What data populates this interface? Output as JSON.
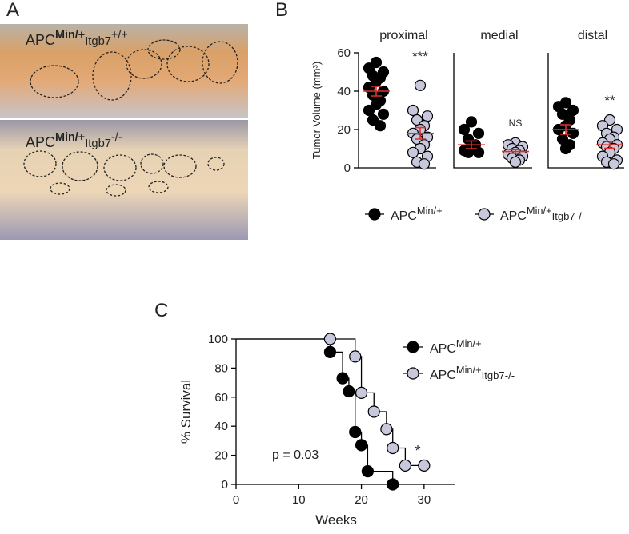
{
  "panels": [
    "A",
    "B",
    "C"
  ],
  "photo": {
    "labels": [
      {
        "base": "APC",
        "sup": "Min/+",
        "gene": "Itgb7",
        "gene_sup": "+/+"
      },
      {
        "base": "APC",
        "sup": "Min/+",
        "gene": "Itgb7",
        "gene_sup": "-/-"
      }
    ]
  },
  "chart_data": [
    {
      "type": "strip",
      "ylabel": "Tumor Volume (mm³)",
      "groups": [
        "proximal",
        "medial",
        "distal"
      ],
      "annotations": [
        "***",
        "NS",
        "**"
      ],
      "ylim": [
        0,
        60
      ],
      "yticks": [
        0,
        20,
        40,
        60
      ],
      "mean_color": "#e0302a",
      "series": [
        {
          "name": {
            "base": "APC",
            "sup": "Min/+"
          },
          "color": "#000000",
          "values": [
            [
              55,
              52,
              50,
              48,
              47,
              45,
              42,
              40,
              38,
              35,
              33,
              30,
              28,
              25,
              22
            ],
            [
              24,
              20,
              18,
              15,
              12,
              10,
              9,
              8,
              8
            ],
            [
              34,
              32,
              30,
              28,
              25,
              22,
              20,
              18,
              15,
              12,
              10
            ]
          ],
          "mean": [
            40,
            12,
            20
          ],
          "sem": [
            2.5,
            2,
            2.5
          ]
        },
        {
          "name": {
            "base": "APC",
            "sup": "Min/+",
            "sub": "Itgb7-/-"
          },
          "color": "#c8c8dc",
          "values": [
            [
              43,
              30,
              27,
              25,
              22,
              20,
              18,
              16,
              15,
              12,
              10,
              8,
              6,
              3,
              2
            ],
            [
              13,
              12,
              11,
              10,
              9,
              8,
              7,
              6,
              5,
              4,
              3
            ],
            [
              25,
              22,
              20,
              18,
              16,
              15,
              13,
              12,
              11,
              10,
              8,
              6,
              4,
              3,
              2
            ]
          ],
          "mean": [
            18,
            8.5,
            12
          ],
          "sem": [
            3,
            1,
            1.8
          ]
        }
      ]
    },
    {
      "type": "step",
      "xlabel": "Weeks",
      "ylabel": "% Survival",
      "annotations": [
        "p = 0.03",
        "*"
      ],
      "xlim": [
        0,
        35
      ],
      "xticks": [
        0,
        10,
        20,
        30
      ],
      "ylim": [
        0,
        100
      ],
      "yticks": [
        0,
        20,
        40,
        60,
        80,
        100
      ],
      "series": [
        {
          "name": {
            "base": "APC",
            "sup": "Min/+"
          },
          "color": "#000000",
          "x": [
            0,
            15,
            17,
            18,
            19,
            20,
            21,
            25
          ],
          "values": [
            100,
            91,
            73,
            64,
            36,
            27,
            9,
            0
          ]
        },
        {
          "name": {
            "base": "APC",
            "sup": "Min/+",
            "sub": "Itgb7-/-"
          },
          "color": "#c8c8dc",
          "x": [
            0,
            15,
            19,
            20,
            22,
            24,
            25,
            27,
            30
          ],
          "values": [
            100,
            100,
            88,
            63,
            50,
            38,
            25,
            13,
            13
          ]
        }
      ]
    }
  ]
}
